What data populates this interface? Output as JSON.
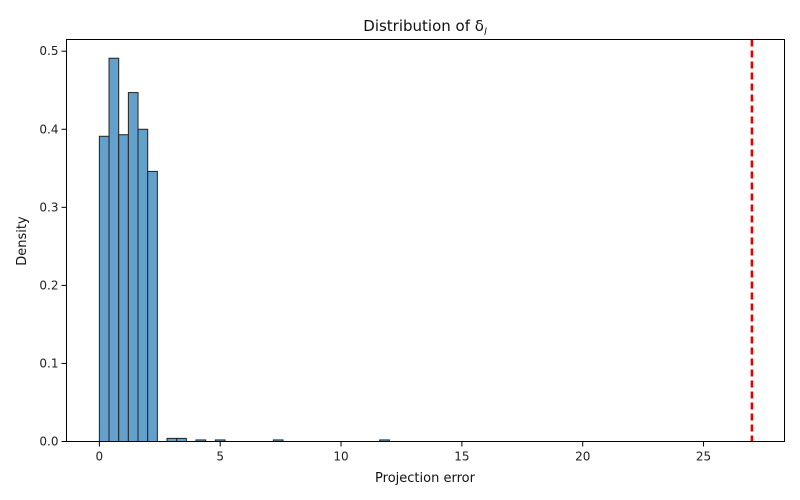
{
  "chart_data": {
    "type": "bar",
    "title": "Distribution of δ",
    "title_subscript": "l",
    "xlabel": "Projection error",
    "ylabel": "Density",
    "xlim": [
      -1.36,
      28.35
    ],
    "ylim": [
      0,
      0.515
    ],
    "xticks": [
      "0",
      "5",
      "10",
      "15",
      "20",
      "25"
    ],
    "yticks": [
      "0.0",
      "0.1",
      "0.2",
      "0.3",
      "0.4",
      "0.5"
    ],
    "grid": false,
    "bar_color": "#5b9bc9",
    "edge_color": "#222222",
    "bin_width": 0.4,
    "bins": [
      {
        "x0": 0.0,
        "value": 0.391
      },
      {
        "x0": 0.4,
        "value": 0.491
      },
      {
        "x0": 0.8,
        "value": 0.393
      },
      {
        "x0": 1.2,
        "value": 0.447
      },
      {
        "x0": 1.6,
        "value": 0.4
      },
      {
        "x0": 2.0,
        "value": 0.346
      },
      {
        "x0": 2.8,
        "value": 0.004
      },
      {
        "x0": 3.2,
        "value": 0.004
      },
      {
        "x0": 4.0,
        "value": 0.002
      },
      {
        "x0": 4.8,
        "value": 0.002
      },
      {
        "x0": 7.2,
        "value": 0.002
      },
      {
        "x0": 11.6,
        "value": 0.002
      }
    ],
    "reference_line": {
      "x": 27.0,
      "color": "#e60000",
      "style": "dashed"
    }
  }
}
